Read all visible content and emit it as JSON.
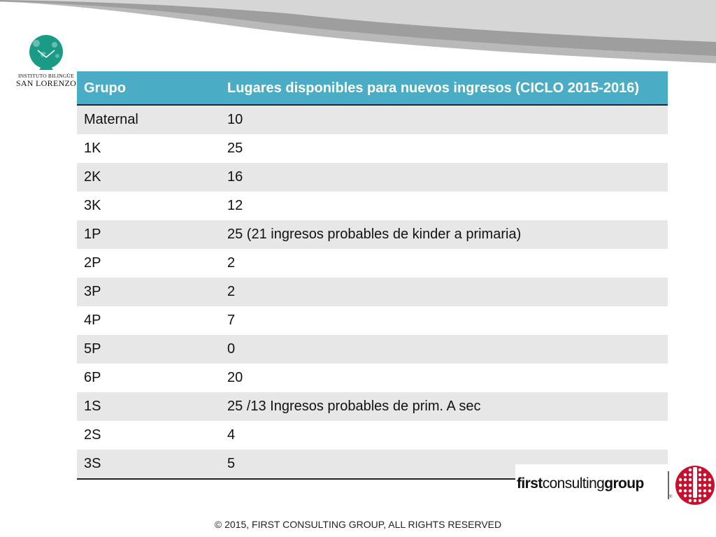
{
  "logo": {
    "line1": "INSTITUTO BILINGÜE",
    "line2": "SAN LORENZO",
    "color": "#1a9b86"
  },
  "table": {
    "headers": [
      "Grupo",
      "Lugares disponibles para nuevos ingresos (CICLO 2015-2016)"
    ],
    "rows": [
      [
        "Maternal",
        "10"
      ],
      [
        "1K",
        "25"
      ],
      [
        "2K",
        "16"
      ],
      [
        "3K",
        "12"
      ],
      [
        "1P",
        "25 (21 ingresos probables de kinder a primaria)"
      ],
      [
        "2P",
        "2"
      ],
      [
        "3P",
        "2"
      ],
      [
        "4P",
        "7"
      ],
      [
        "5P",
        "0"
      ],
      [
        "6P",
        "20"
      ],
      [
        "1S",
        "25 /13 Ingresos probables de prim. A sec"
      ],
      [
        "2S",
        "4"
      ],
      [
        "3S",
        "5"
      ]
    ],
    "header_color": "#4bacc6",
    "band_color": "#e7e7e7"
  },
  "brand": {
    "word1": "first",
    "word2": "consulting",
    "word3": "group",
    "registered": "®",
    "accent": "#c8102e"
  },
  "footer": {
    "text": "© 2015,   FIRST CONSULTING GROUP, ALL RIGHTS RESERVED"
  }
}
